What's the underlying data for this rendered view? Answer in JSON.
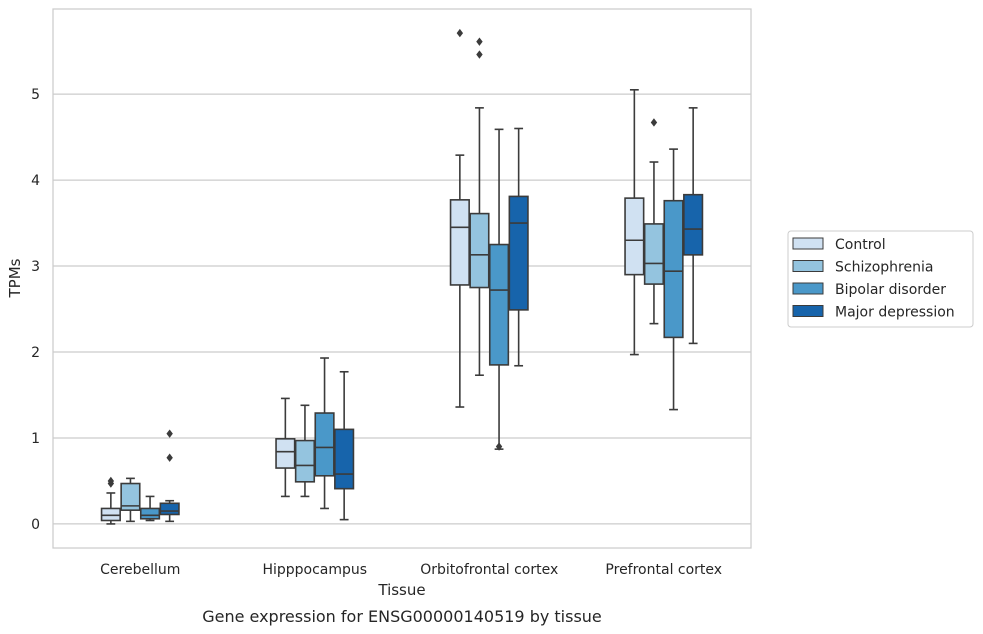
{
  "caption": "Gene expression for ENSG00000140519 by tissue",
  "chart_data": {
    "type": "box",
    "xlabel": "Tissue",
    "ylabel": "TPMs",
    "ylim": [
      -0.28,
      5.99
    ],
    "yticks": [
      0,
      1,
      2,
      3,
      4,
      5
    ],
    "grid": "horizontal",
    "legend_position": "right",
    "categories": [
      "Cerebellum",
      "Hipppocampus",
      "Orbitofrontal cortex",
      "Prefrontal cortex"
    ],
    "series": [
      {
        "name": "Control",
        "color": "#d0e1f2",
        "boxes": [
          {
            "whisker_low": 0.0,
            "q1": 0.04,
            "median": 0.1,
            "q3": 0.18,
            "whisker_high": 0.36,
            "outliers": [
              0.47,
              0.5
            ]
          },
          {
            "whisker_low": 0.32,
            "q1": 0.65,
            "median": 0.84,
            "q3": 0.99,
            "whisker_high": 1.46,
            "outliers": []
          },
          {
            "whisker_low": 1.36,
            "q1": 2.78,
            "median": 3.45,
            "q3": 3.77,
            "whisker_high": 4.29,
            "outliers": [
              5.71
            ]
          },
          {
            "whisker_low": 1.97,
            "q1": 2.9,
            "median": 3.3,
            "q3": 3.79,
            "whisker_high": 5.05,
            "outliers": []
          }
        ]
      },
      {
        "name": "Schizophrenia",
        "color": "#94c4df",
        "boxes": [
          {
            "whisker_low": 0.03,
            "q1": 0.16,
            "median": 0.21,
            "q3": 0.47,
            "whisker_high": 0.53,
            "outliers": []
          },
          {
            "whisker_low": 0.32,
            "q1": 0.49,
            "median": 0.68,
            "q3": 0.97,
            "whisker_high": 1.38,
            "outliers": []
          },
          {
            "whisker_low": 1.73,
            "q1": 2.75,
            "median": 3.13,
            "q3": 3.61,
            "whisker_high": 4.84,
            "outliers": [
              5.61,
              5.46
            ]
          },
          {
            "whisker_low": 2.33,
            "q1": 2.79,
            "median": 3.03,
            "q3": 3.49,
            "whisker_high": 4.21,
            "outliers": [
              4.67
            ]
          }
        ]
      },
      {
        "name": "Bipolar disorder",
        "color": "#4a98c9",
        "boxes": [
          {
            "whisker_low": 0.04,
            "q1": 0.06,
            "median": 0.1,
            "q3": 0.18,
            "whisker_high": 0.32,
            "outliers": []
          },
          {
            "whisker_low": 0.18,
            "q1": 0.56,
            "median": 0.89,
            "q3": 1.29,
            "whisker_high": 1.93,
            "outliers": []
          },
          {
            "whisker_low": 0.87,
            "q1": 1.85,
            "median": 2.72,
            "q3": 3.25,
            "whisker_high": 4.59,
            "outliers": [
              0.9
            ]
          },
          {
            "whisker_low": 1.33,
            "q1": 2.17,
            "median": 2.94,
            "q3": 3.76,
            "whisker_high": 4.36,
            "outliers": []
          }
        ]
      },
      {
        "name": "Major depression",
        "color": "#1764ab",
        "boxes": [
          {
            "whisker_low": 0.03,
            "q1": 0.11,
            "median": 0.15,
            "q3": 0.24,
            "whisker_high": 0.27,
            "outliers": [
              0.77,
              1.05
            ]
          },
          {
            "whisker_low": 0.05,
            "q1": 0.41,
            "median": 0.58,
            "q3": 1.1,
            "whisker_high": 1.77,
            "outliers": []
          },
          {
            "whisker_low": 1.84,
            "q1": 2.49,
            "median": 3.5,
            "q3": 3.81,
            "whisker_high": 4.6,
            "outliers": []
          },
          {
            "whisker_low": 2.1,
            "q1": 3.13,
            "median": 3.43,
            "q3": 3.83,
            "whisker_high": 4.84,
            "outliers": []
          }
        ]
      }
    ]
  }
}
